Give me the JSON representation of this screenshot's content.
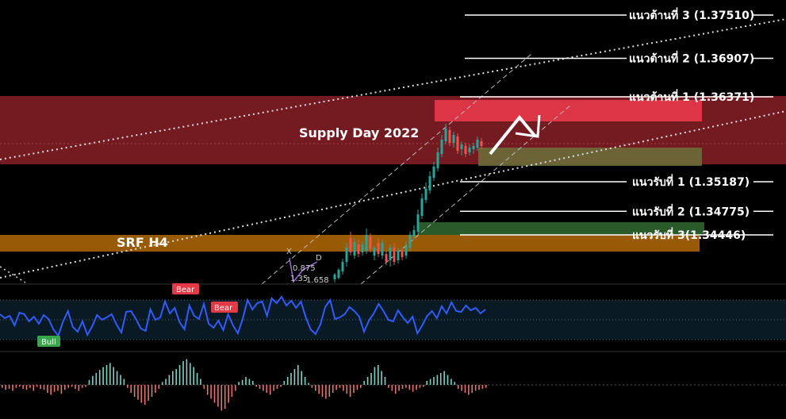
{
  "chart_data": {
    "type": "line",
    "title": "",
    "colors": {
      "background": "#000000",
      "supply_zone": "#7a1c24",
      "srf_zone": "#b36a05",
      "red_box": "#dc3545",
      "olive_box": "#6b6b3a",
      "green_box": "#2a5a2a",
      "rsi_line": "#2f5bff",
      "bull_candle": "#26a69a",
      "bear_candle": "#ef5350",
      "level_line": "#ffffff"
    },
    "zones": {
      "supply": "Supply Day  2022",
      "srf": "SRF H4"
    },
    "levels": [
      {
        "name": "resistance-3",
        "label": "แนวต้านที่ 3 (1.37510)",
        "price": 1.3751
      },
      {
        "name": "resistance-2",
        "label": "แนวต้านที่ 2 (1.36907)",
        "price": 1.36907
      },
      {
        "name": "resistance-1",
        "label": "แนวต้านที่ 1 (1.36371)",
        "price": 1.36371
      },
      {
        "name": "support-1",
        "label": "แนวรับที่ 1 (1.35187)",
        "price": 1.35187
      },
      {
        "name": "support-2",
        "label": "แนวรับที่ 2 (1.34775)",
        "price": 1.34775
      },
      {
        "name": "support-3",
        "label": "แนวรับที่ 3(1.34446)",
        "price": 1.34446
      }
    ],
    "harmonic": {
      "x_label": "X",
      "d_label": "D",
      "ratio_1": "0.875",
      "ratio_2": "1.35",
      "ratio_3": "1.658"
    },
    "indicator_tags": {
      "bear_1": "Bear",
      "bear_2": "Bear",
      "bull_1": "Bull"
    },
    "rsi_series": [
      396,
      401,
      398,
      410,
      394,
      396,
      405,
      399,
      408,
      397,
      402,
      415,
      423,
      405,
      392,
      412,
      418,
      405,
      422,
      411,
      397,
      403,
      400,
      396,
      409,
      419,
      393,
      392,
      402,
      414,
      417,
      390,
      403,
      400,
      380,
      395,
      388,
      406,
      415,
      385,
      398,
      402,
      383,
      408,
      413,
      404,
      416,
      396,
      410,
      420,
      402,
      378,
      390,
      382,
      380,
      398,
      376,
      382,
      374,
      385,
      379,
      388,
      380,
      400,
      415,
      421,
      409,
      387,
      378,
      402,
      400,
      396,
      387,
      392,
      399,
      418,
      404,
      395,
      383,
      392,
      403,
      405,
      391,
      400,
      407,
      399,
      420,
      410,
      398,
      392,
      401,
      386,
      395,
      381,
      392,
      393,
      385,
      391,
      388,
      395,
      390
    ],
    "histogram": [
      -3,
      -5,
      -4,
      -6,
      -3,
      -2,
      -4,
      -5,
      -3,
      -6,
      -2,
      -4,
      -5,
      -8,
      -10,
      -7,
      -6,
      -9,
      -5,
      -3,
      -2,
      -4,
      -6,
      -3,
      -2,
      5,
      9,
      12,
      15,
      18,
      20,
      22,
      18,
      14,
      10,
      6,
      -3,
      -8,
      -12,
      -15,
      -18,
      -20,
      -16,
      -12,
      -8,
      -4,
      3,
      6,
      10,
      14,
      16,
      20,
      24,
      26,
      22,
      18,
      12,
      6,
      -4,
      -10,
      -14,
      -18,
      -22,
      -26,
      -24,
      -18,
      -12,
      -6,
      3,
      5,
      8,
      6,
      4,
      -2,
      -4,
      -6,
      -8,
      -10,
      -6,
      -4,
      -2,
      4,
      8,
      12,
      16,
      20,
      14,
      8,
      2,
      -3,
      -6,
      -9,
      -12,
      -14,
      -12,
      -8,
      -5,
      -3,
      -6,
      -9,
      -12,
      -8,
      -5,
      -3,
      4,
      8,
      12,
      18,
      20,
      14,
      8,
      -3,
      -6,
      -9,
      -6,
      -4,
      -3,
      -5,
      -7,
      -5,
      -3,
      -2,
      4,
      6,
      8,
      10,
      12,
      14,
      10,
      6,
      3,
      -4,
      -6,
      -8,
      -10,
      -8,
      -6,
      -5,
      -4,
      -3
    ]
  }
}
